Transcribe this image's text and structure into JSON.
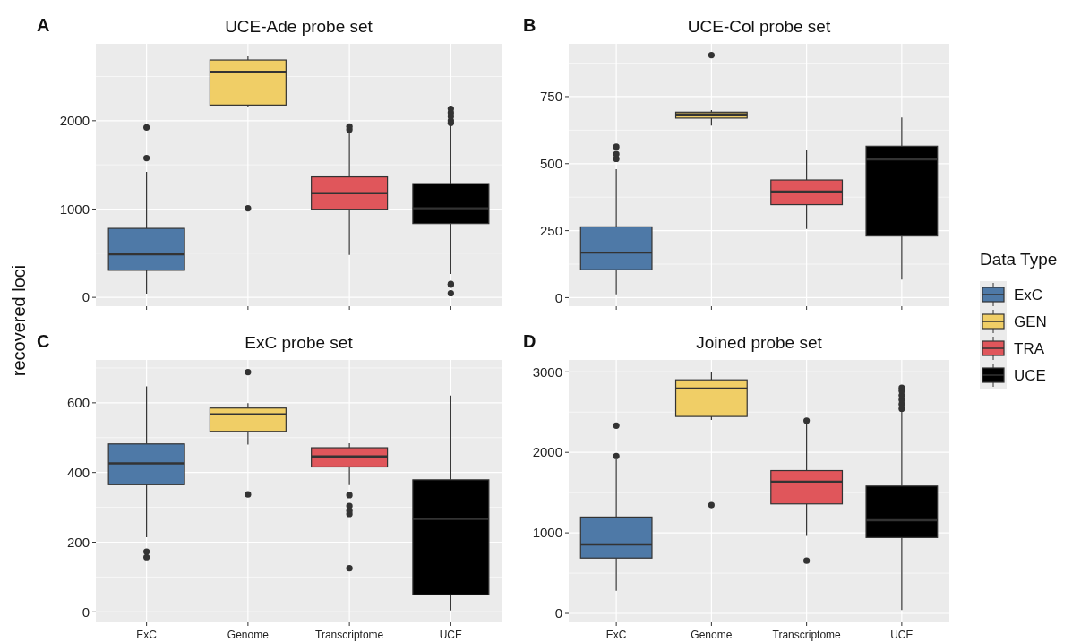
{
  "chart_data": [
    {
      "type": "box",
      "title": "UCE-Ade probe set",
      "annotations": [
        "A"
      ],
      "ylabel": "recovered loci",
      "categories": [
        null,
        null,
        null,
        null
      ],
      "ylim": [
        -100,
        2870
      ],
      "yticks": [
        0,
        1000,
        2000
      ],
      "grid": true,
      "tick_labels": "y",
      "series": [
        {
          "color": "#4e79a7",
          "boxes": [
            {
              "low": 43,
              "q1": 307,
              "median": 488,
              "q3": 781,
              "high": 1421,
              "outliers": [
                1577,
                1924
              ]
            },
            null,
            null,
            null
          ]
        },
        {
          "color": "#f0ce66",
          "boxes": [
            null,
            {
              "low": 2160,
              "q1": 2177,
              "median": 2554,
              "q3": 2687,
              "high": 2731,
              "outliers": [
                1009
              ]
            },
            null,
            null
          ]
        },
        {
          "color": "#e0565b",
          "boxes": [
            null,
            null,
            {
              "low": 481,
              "q1": 998,
              "median": 1179,
              "q3": 1364,
              "high": 1870,
              "outliers": [
                1900,
                1935
              ]
            },
            null
          ]
        },
        {
          "color": "#000000",
          "boxes": [
            null,
            null,
            null,
            {
              "low": 264,
              "q1": 836,
              "median": 1009,
              "q3": 1288,
              "high": 1960,
              "outliers": [
                47,
                145,
                152,
                1975,
                2000,
                2050,
                2090,
                2134
              ]
            }
          ]
        }
      ]
    },
    {
      "type": "box",
      "title": "UCE-Col probe set",
      "annotations": [
        "B"
      ],
      "categories": [
        null,
        null,
        null,
        null
      ],
      "ylim": [
        -32,
        947
      ],
      "yticks": [
        0,
        250,
        500,
        750
      ],
      "grid": true,
      "tick_labels": "y",
      "legend": "right",
      "legend_title": "Data Type",
      "series": [
        {
          "name": "ExC",
          "color": "#4e79a7",
          "boxes": [
            {
              "low": 12,
              "q1": 104,
              "median": 168,
              "q3": 264,
              "high": 479,
              "outliers": [
                518,
                536,
                563
              ]
            },
            null,
            null,
            null
          ]
        },
        {
          "name": "GEN",
          "color": "#f0ce66",
          "boxes": [
            null,
            {
              "low": 642,
              "q1": 670,
              "median": 684,
              "q3": 692,
              "high": 700,
              "outliers": [
                905
              ]
            },
            null,
            null
          ]
        },
        {
          "name": "TRA",
          "color": "#e0565b",
          "boxes": [
            null,
            null,
            {
              "low": 256,
              "q1": 347,
              "median": 396,
              "q3": 439,
              "high": 549
            },
            null
          ]
        },
        {
          "name": "UCE",
          "color": "#000000",
          "boxes": [
            null,
            null,
            null,
            {
              "low": 67,
              "q1": 230,
              "median": 516,
              "q3": 565,
              "high": 672
            }
          ]
        }
      ]
    },
    {
      "type": "box",
      "title": "ExC probe set",
      "annotations": [
        "C"
      ],
      "categories": [
        "ExC",
        "Genome",
        "Transcriptome",
        "UCE"
      ],
      "ylim": [
        -30,
        723
      ],
      "yticks": [
        0,
        200,
        400,
        600
      ],
      "grid": true,
      "series": [
        {
          "color": "#4e79a7",
          "boxes": [
            {
              "low": 214,
              "q1": 365,
              "median": 426,
              "q3": 482,
              "high": 647,
              "outliers": [
                157,
                173
              ]
            },
            null,
            null,
            null
          ]
        },
        {
          "color": "#f0ce66",
          "boxes": [
            null,
            {
              "low": 480,
              "q1": 518,
              "median": 567,
              "q3": 585,
              "high": 599,
              "outliers": [
                337,
                688
              ]
            },
            null,
            null
          ]
        },
        {
          "color": "#e0565b",
          "boxes": [
            null,
            null,
            {
              "low": 364,
              "q1": 416,
              "median": 446,
              "q3": 471,
              "high": 484,
              "outliers": [
                125,
                281,
                290,
                304,
                335
              ]
            },
            null
          ]
        },
        {
          "color": "#000000",
          "boxes": [
            null,
            null,
            null,
            {
              "low": 4,
              "q1": 49,
              "median": 267,
              "q3": 379,
              "high": 621
            }
          ]
        }
      ]
    },
    {
      "type": "box",
      "title": "Joined probe set",
      "annotations": [
        "D"
      ],
      "categories": [
        "ExC",
        "Genome",
        "Transcriptome",
        "UCE"
      ],
      "ylim": [
        -111,
        3148
      ],
      "yticks": [
        0,
        1000,
        2000,
        3000
      ],
      "grid": true,
      "series": [
        {
          "color": "#4e79a7",
          "boxes": [
            {
              "low": 281,
              "q1": 687,
              "median": 857,
              "q3": 1197,
              "high": 1920,
              "outliers": [
                1955,
                2332
              ]
            },
            null,
            null,
            null
          ]
        },
        {
          "color": "#f0ce66",
          "boxes": [
            null,
            {
              "low": 2402,
              "q1": 2446,
              "median": 2793,
              "q3": 2901,
              "high": 3000,
              "outliers": [
                1345
              ]
            },
            null,
            null
          ]
        },
        {
          "color": "#e0565b",
          "boxes": [
            null,
            null,
            {
              "low": 961,
              "q1": 1360,
              "median": 1637,
              "q3": 1774,
              "high": 2360,
              "outliers": [
                654,
                2394
              ]
            },
            null
          ]
        },
        {
          "color": "#000000",
          "boxes": [
            null,
            null,
            null,
            {
              "low": 41,
              "q1": 942,
              "median": 1157,
              "q3": 1582,
              "high": 2520,
              "outliers": [
                2542,
                2598,
                2653,
                2708,
                2764,
                2801
              ]
            }
          ]
        }
      ]
    }
  ]
}
